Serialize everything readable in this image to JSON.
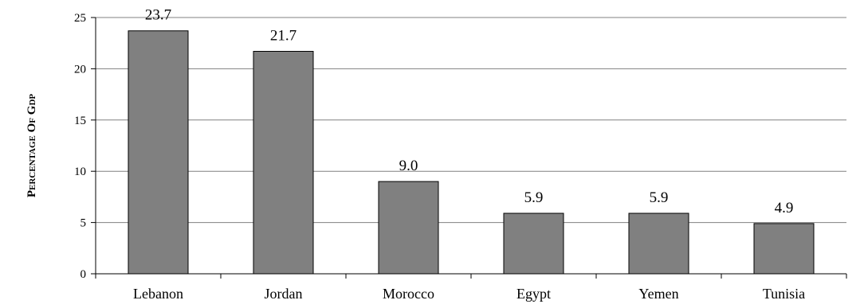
{
  "chart_data": {
    "type": "bar",
    "title": "",
    "xlabel": "",
    "ylabel": "PERCENTAGE OF GDP",
    "ylim": [
      0,
      25
    ],
    "yticks": [
      0,
      5,
      10,
      15,
      20,
      25
    ],
    "grid": true,
    "categories": [
      "Lebanon",
      "Jordan",
      "Morocco",
      "Egypt",
      "Yemen",
      "Tunisia"
    ],
    "values": [
      23.7,
      21.7,
      9.0,
      5.9,
      5.9,
      4.9
    ],
    "value_labels": [
      "23.7",
      "21.7",
      "9.0",
      "5.9",
      "5.9",
      "4.9"
    ],
    "bar_color": "#808080"
  }
}
